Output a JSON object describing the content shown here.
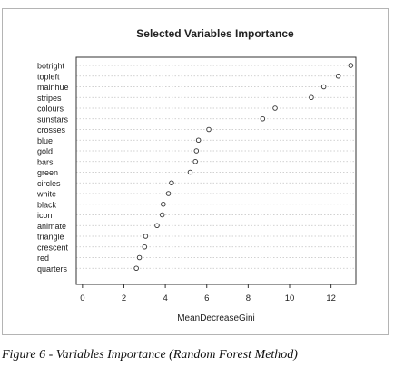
{
  "chart_data": {
    "type": "scatter",
    "title": "Selected Variables Importance",
    "xlabel": "MeanDecreaseGini",
    "xlim": [
      -0.3,
      13.2
    ],
    "x_ticks": [
      "0",
      "2",
      "4",
      "6",
      "8",
      "10",
      "12"
    ],
    "x_tick_values": [
      0,
      2,
      4,
      6,
      8,
      10,
      12
    ],
    "grid": "horizontal dotted lines",
    "categories": [
      "botright",
      "topleft",
      "mainhue",
      "stripes",
      "colours",
      "sunstars",
      "crosses",
      "blue",
      "gold",
      "bars",
      "green",
      "circles",
      "white",
      "black",
      "icon",
      "animate",
      "triangle",
      "crescent",
      "red",
      "quarters"
    ],
    "values": [
      12.95,
      12.35,
      11.65,
      11.05,
      9.3,
      8.7,
      6.1,
      5.6,
      5.5,
      5.45,
      5.2,
      4.3,
      4.15,
      3.9,
      3.85,
      3.6,
      3.05,
      3.0,
      2.75,
      2.6
    ]
  },
  "caption": "Figure 6 - Variables Importance (Random Forest Method)"
}
